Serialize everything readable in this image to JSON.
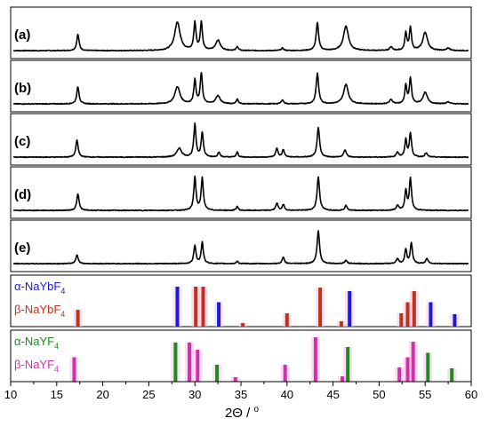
{
  "chart_data": {
    "type": "line",
    "xlabel_main": "2Θ / ",
    "xlabel_unit": "o",
    "xlim": [
      10,
      60
    ],
    "xticks": [
      "10",
      "15",
      "20",
      "25",
      "30",
      "35",
      "40",
      "45",
      "50",
      "55",
      "60"
    ],
    "panels": [
      {
        "label": "(a)",
        "peaks": [
          {
            "x": 17.3,
            "h": 0.4,
            "w": 0.15
          },
          {
            "x": 28.1,
            "h": 0.7,
            "w": 0.35
          },
          {
            "x": 30.0,
            "h": 0.68,
            "w": 0.14
          },
          {
            "x": 30.7,
            "h": 0.68,
            "w": 0.14
          },
          {
            "x": 32.5,
            "h": 0.25,
            "w": 0.3
          },
          {
            "x": 34.6,
            "h": 0.1,
            "w": 0.12
          },
          {
            "x": 39.5,
            "h": 0.06,
            "w": 0.15
          },
          {
            "x": 43.3,
            "h": 0.68,
            "w": 0.16
          },
          {
            "x": 46.4,
            "h": 0.6,
            "w": 0.32
          },
          {
            "x": 51.3,
            "h": 0.08,
            "w": 0.2
          },
          {
            "x": 52.9,
            "h": 0.42,
            "w": 0.13
          },
          {
            "x": 53.4,
            "h": 0.55,
            "w": 0.14
          },
          {
            "x": 55.0,
            "h": 0.45,
            "w": 0.3
          },
          {
            "x": 57.5,
            "h": 0.06,
            "w": 0.2
          }
        ]
      },
      {
        "label": "(b)",
        "peaks": [
          {
            "x": 17.3,
            "h": 0.42,
            "w": 0.15
          },
          {
            "x": 28.1,
            "h": 0.42,
            "w": 0.33
          },
          {
            "x": 30.0,
            "h": 0.58,
            "w": 0.14
          },
          {
            "x": 30.7,
            "h": 0.74,
            "w": 0.14
          },
          {
            "x": 32.5,
            "h": 0.2,
            "w": 0.28
          },
          {
            "x": 34.6,
            "h": 0.12,
            "w": 0.12
          },
          {
            "x": 39.5,
            "h": 0.1,
            "w": 0.15
          },
          {
            "x": 43.3,
            "h": 0.75,
            "w": 0.16
          },
          {
            "x": 46.4,
            "h": 0.48,
            "w": 0.3
          },
          {
            "x": 51.3,
            "h": 0.1,
            "w": 0.2
          },
          {
            "x": 52.9,
            "h": 0.45,
            "w": 0.13
          },
          {
            "x": 53.4,
            "h": 0.62,
            "w": 0.14
          },
          {
            "x": 55.0,
            "h": 0.28,
            "w": 0.28
          },
          {
            "x": 57.5,
            "h": 0.05,
            "w": 0.2
          }
        ]
      },
      {
        "label": "(c)",
        "peaks": [
          {
            "x": 17.2,
            "h": 0.42,
            "w": 0.15
          },
          {
            "x": 28.3,
            "h": 0.22,
            "w": 0.3
          },
          {
            "x": 30.0,
            "h": 0.8,
            "w": 0.14
          },
          {
            "x": 30.8,
            "h": 0.6,
            "w": 0.14
          },
          {
            "x": 32.6,
            "h": 0.12,
            "w": 0.14
          },
          {
            "x": 34.6,
            "h": 0.12,
            "w": 0.12
          },
          {
            "x": 38.9,
            "h": 0.22,
            "w": 0.14
          },
          {
            "x": 39.6,
            "h": 0.18,
            "w": 0.14
          },
          {
            "x": 43.4,
            "h": 0.72,
            "w": 0.16
          },
          {
            "x": 46.3,
            "h": 0.18,
            "w": 0.16
          },
          {
            "x": 52.0,
            "h": 0.12,
            "w": 0.16
          },
          {
            "x": 52.9,
            "h": 0.42,
            "w": 0.13
          },
          {
            "x": 53.4,
            "h": 0.58,
            "w": 0.14
          },
          {
            "x": 55.1,
            "h": 0.1,
            "w": 0.16
          }
        ]
      },
      {
        "label": "(d)",
        "peaks": [
          {
            "x": 17.3,
            "h": 0.4,
            "w": 0.15
          },
          {
            "x": 30.0,
            "h": 0.82,
            "w": 0.14
          },
          {
            "x": 30.8,
            "h": 0.8,
            "w": 0.14
          },
          {
            "x": 34.6,
            "h": 0.1,
            "w": 0.12
          },
          {
            "x": 38.9,
            "h": 0.18,
            "w": 0.14
          },
          {
            "x": 39.6,
            "h": 0.14,
            "w": 0.14
          },
          {
            "x": 43.4,
            "h": 0.82,
            "w": 0.16
          },
          {
            "x": 46.4,
            "h": 0.12,
            "w": 0.15
          },
          {
            "x": 52.0,
            "h": 0.12,
            "w": 0.16
          },
          {
            "x": 52.9,
            "h": 0.48,
            "w": 0.13
          },
          {
            "x": 53.4,
            "h": 0.78,
            "w": 0.14
          }
        ]
      },
      {
        "label": "(e)",
        "peaks": [
          {
            "x": 17.2,
            "h": 0.22,
            "w": 0.15
          },
          {
            "x": 30.0,
            "h": 0.45,
            "w": 0.14
          },
          {
            "x": 30.8,
            "h": 0.52,
            "w": 0.14
          },
          {
            "x": 34.6,
            "h": 0.06,
            "w": 0.12
          },
          {
            "x": 39.6,
            "h": 0.16,
            "w": 0.14
          },
          {
            "x": 43.4,
            "h": 0.8,
            "w": 0.16
          },
          {
            "x": 46.4,
            "h": 0.08,
            "w": 0.15
          },
          {
            "x": 52.0,
            "h": 0.12,
            "w": 0.16
          },
          {
            "x": 52.9,
            "h": 0.35,
            "w": 0.13
          },
          {
            "x": 53.5,
            "h": 0.5,
            "w": 0.14
          },
          {
            "x": 55.2,
            "h": 0.12,
            "w": 0.16
          }
        ]
      }
    ],
    "reference_panels": [
      {
        "entries": [
          {
            "prefix": "α-NaYbF",
            "sub": "4",
            "color": "#1a1ad8",
            "lines": [
              {
                "x": 28.1,
                "h": 0.9
              },
              {
                "x": 32.6,
                "h": 0.55
              },
              {
                "x": 46.8,
                "h": 0.8
              },
              {
                "x": 55.6,
                "h": 0.55
              },
              {
                "x": 58.2,
                "h": 0.28
              }
            ]
          },
          {
            "prefix": "β-NaYbF",
            "sub": "4",
            "color": "#c0311a",
            "lines": [
              {
                "x": 17.3,
                "h": 0.38
              },
              {
                "x": 30.1,
                "h": 0.9
              },
              {
                "x": 30.9,
                "h": 0.9
              },
              {
                "x": 35.2,
                "h": 0.08
              },
              {
                "x": 40.0,
                "h": 0.3
              },
              {
                "x": 43.6,
                "h": 0.88
              },
              {
                "x": 45.9,
                "h": 0.12
              },
              {
                "x": 52.4,
                "h": 0.3
              },
              {
                "x": 53.1,
                "h": 0.55
              },
              {
                "x": 53.8,
                "h": 0.8
              }
            ]
          }
        ]
      },
      {
        "entries": [
          {
            "prefix": "α-NaYF",
            "sub": "4",
            "color": "#1f8a1f",
            "lines": [
              {
                "x": 27.9,
                "h": 0.88
              },
              {
                "x": 32.4,
                "h": 0.38
              },
              {
                "x": 46.6,
                "h": 0.78
              },
              {
                "x": 55.3,
                "h": 0.65
              },
              {
                "x": 57.9,
                "h": 0.3
              }
            ]
          },
          {
            "prefix": "β-NaYF",
            "sub": "4",
            "color": "#d02fae",
            "lines": [
              {
                "x": 16.9,
                "h": 0.55
              },
              {
                "x": 29.4,
                "h": 0.88
              },
              {
                "x": 30.3,
                "h": 0.72
              },
              {
                "x": 34.4,
                "h": 0.1
              },
              {
                "x": 39.8,
                "h": 0.38
              },
              {
                "x": 43.1,
                "h": 1.0
              },
              {
                "x": 46.0,
                "h": 0.12
              },
              {
                "x": 52.2,
                "h": 0.32
              },
              {
                "x": 53.1,
                "h": 0.55
              },
              {
                "x": 53.7,
                "h": 0.9
              }
            ]
          }
        ]
      }
    ]
  }
}
